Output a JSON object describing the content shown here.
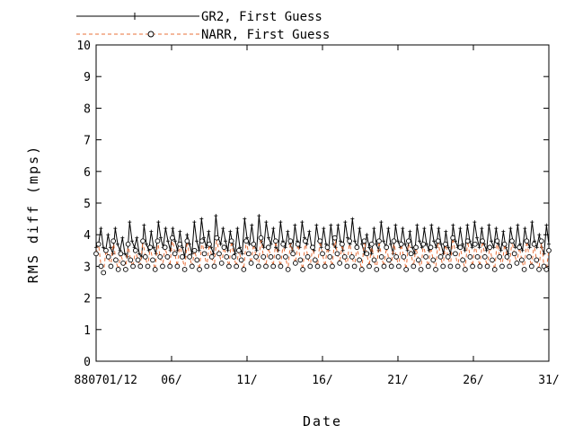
{
  "chart_data": {
    "type": "line",
    "xlabel": "Date",
    "ylabel": "RMS diff (mps)",
    "ylim": [
      0,
      10
    ],
    "y_ticks": [
      0,
      1,
      2,
      3,
      4,
      5,
      6,
      7,
      8,
      9,
      10
    ],
    "x_range_days": [
      1,
      31
    ],
    "x_ticks": [
      {
        "day": 1,
        "label": "880701/12"
      },
      {
        "day": 6,
        "label": "06/"
      },
      {
        "day": 11,
        "label": "11/"
      },
      {
        "day": 16,
        "label": "16/"
      },
      {
        "day": 21,
        "label": "21/"
      },
      {
        "day": 26,
        "label": "26/"
      },
      {
        "day": 31,
        "label": "31/"
      }
    ],
    "grid": false,
    "legend_position": "top",
    "series": [
      {
        "name": "GR2, First Guess",
        "color": "#000000",
        "line_style": "solid",
        "marker": "plus",
        "values": [
          3.6,
          3.7,
          4.2,
          3.6,
          3.5,
          4.0,
          3.6,
          3.4,
          4.2,
          3.7,
          3.5,
          3.9,
          3.4,
          3.3,
          4.4,
          3.8,
          3.6,
          3.9,
          3.4,
          3.3,
          4.3,
          3.7,
          3.5,
          4.1,
          3.6,
          3.4,
          4.4,
          3.9,
          3.6,
          4.2,
          3.8,
          3.5,
          4.2,
          3.8,
          3.5,
          4.1,
          3.6,
          3.3,
          4.0,
          3.7,
          3.4,
          4.4,
          3.8,
          3.5,
          4.5,
          3.9,
          3.6,
          4.1,
          3.6,
          3.4,
          4.6,
          3.9,
          3.7,
          4.2,
          3.8,
          3.5,
          4.1,
          3.7,
          3.4,
          4.2,
          3.6,
          3.4,
          4.5,
          3.9,
          3.7,
          4.3,
          3.7,
          3.5,
          4.6,
          3.8,
          3.6,
          4.4,
          3.9,
          3.7,
          4.2,
          3.6,
          3.5,
          4.4,
          3.8,
          3.6,
          4.1,
          3.7,
          3.5,
          4.3,
          3.8,
          3.6,
          4.4,
          3.9,
          3.7,
          4.1,
          3.6,
          3.5,
          4.3,
          3.8,
          3.6,
          4.2,
          3.7,
          3.5,
          4.3,
          3.7,
          3.6,
          4.3,
          3.8,
          3.5,
          4.4,
          3.9,
          3.7,
          4.5,
          3.8,
          3.6,
          4.2,
          3.7,
          3.4,
          4.0,
          3.6,
          3.4,
          4.2,
          3.7,
          3.5,
          4.4,
          3.8,
          3.6,
          4.2,
          3.7,
          3.4,
          4.3,
          3.8,
          3.6,
          4.2,
          3.7,
          3.5,
          4.1,
          3.6,
          3.4,
          4.3,
          3.8,
          3.6,
          4.2,
          3.7,
          3.5,
          4.3,
          3.8,
          3.6,
          4.2,
          3.7,
          3.4,
          4.1,
          3.6,
          3.4,
          4.3,
          3.8,
          3.6,
          4.2,
          3.7,
          3.5,
          4.3,
          3.8,
          3.6,
          4.4,
          3.9,
          3.6,
          4.2,
          3.7,
          3.5,
          4.3,
          3.8,
          3.6,
          4.2,
          3.7,
          3.5,
          4.1,
          3.6,
          3.4,
          4.2,
          3.8,
          3.6,
          4.3,
          3.7,
          3.5,
          4.2,
          3.8,
          3.6,
          4.4,
          3.8,
          3.6,
          4.0,
          3.6,
          3.4,
          4.3,
          3.7
        ]
      },
      {
        "name": "NARR, First Guess",
        "color": "#e8703a",
        "line_style": "dashed",
        "marker": "open-circle",
        "values": [
          3.4,
          3.7,
          3.0,
          2.8,
          3.5,
          3.3,
          3.0,
          3.8,
          3.2,
          2.9,
          3.4,
          3.1,
          2.9,
          3.7,
          3.2,
          3.0,
          3.5,
          3.2,
          3.0,
          3.8,
          3.3,
          3.0,
          3.6,
          3.2,
          2.9,
          3.8,
          3.3,
          3.0,
          3.6,
          3.3,
          3.0,
          3.9,
          3.4,
          3.0,
          3.7,
          3.3,
          2.9,
          3.8,
          3.3,
          3.0,
          3.5,
          3.2,
          2.9,
          3.8,
          3.4,
          3.0,
          3.7,
          3.3,
          3.0,
          3.9,
          3.4,
          3.1,
          3.6,
          3.3,
          3.0,
          3.8,
          3.3,
          3.0,
          3.5,
          3.2,
          2.9,
          3.8,
          3.4,
          3.1,
          3.7,
          3.3,
          3.0,
          3.9,
          3.3,
          3.0,
          3.6,
          3.3,
          3.0,
          3.8,
          3.3,
          3.0,
          3.7,
          3.3,
          2.9,
          3.8,
          3.4,
          3.1,
          3.7,
          3.2,
          2.9,
          3.8,
          3.3,
          3.0,
          3.6,
          3.2,
          3.0,
          3.8,
          3.4,
          3.0,
          3.6,
          3.3,
          3.0,
          3.9,
          3.4,
          3.1,
          3.7,
          3.3,
          3.0,
          3.8,
          3.3,
          3.0,
          3.6,
          3.2,
          2.9,
          3.8,
          3.4,
          3.0,
          3.7,
          3.2,
          2.9,
          3.8,
          3.3,
          3.0,
          3.6,
          3.2,
          3.0,
          3.8,
          3.3,
          3.0,
          3.7,
          3.3,
          2.9,
          3.8,
          3.4,
          3.0,
          3.6,
          3.2,
          2.9,
          3.7,
          3.3,
          3.0,
          3.6,
          3.2,
          2.9,
          3.8,
          3.3,
          3.0,
          3.7,
          3.3,
          3.0,
          3.9,
          3.4,
          3.0,
          3.6,
          3.2,
          2.9,
          3.8,
          3.3,
          3.0,
          3.7,
          3.3,
          3.0,
          3.8,
          3.3,
          3.0,
          3.6,
          3.2,
          2.9,
          3.8,
          3.3,
          3.0,
          3.7,
          3.3,
          3.0,
          3.8,
          3.4,
          3.1,
          3.6,
          3.2,
          2.9,
          3.8,
          3.3,
          3.0,
          3.7,
          3.2,
          2.9,
          3.8,
          3.0,
          2.9,
          3.5
        ]
      }
    ]
  }
}
